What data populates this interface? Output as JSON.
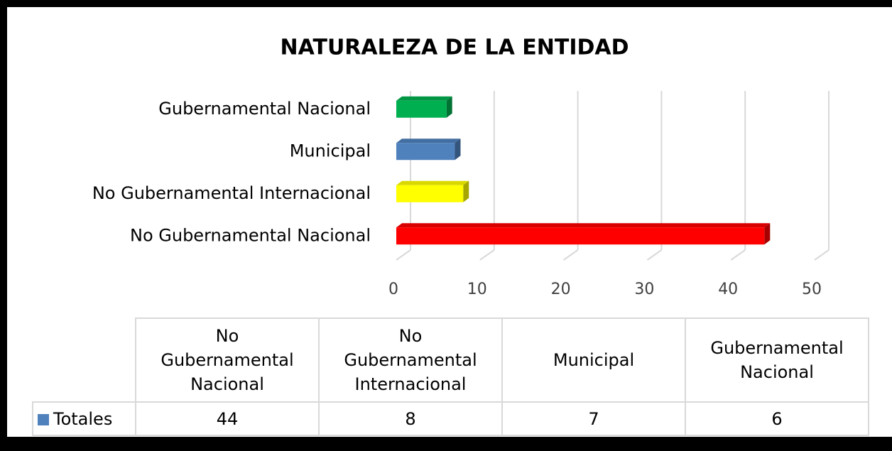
{
  "chart_data": {
    "type": "bar3d_horizontal",
    "title": "NATURALEZA DE LA ENTIDAD",
    "categories": [
      "No Gubernamental Nacional",
      "No Gubernamental Internacional",
      "Municipal",
      "Gubernamental Nacional"
    ],
    "series": [
      {
        "name": "Totales",
        "color": "#4f81bd",
        "point_colors": [
          "#ff0000",
          "#ffff00",
          "#4f81bd",
          "#00b050"
        ],
        "values": [
          44,
          8,
          7,
          6
        ]
      }
    ],
    "xlim": [
      0,
      50
    ],
    "xticks": [
      0,
      10,
      20,
      30,
      40,
      50
    ],
    "grid": true,
    "data_table": true
  }
}
